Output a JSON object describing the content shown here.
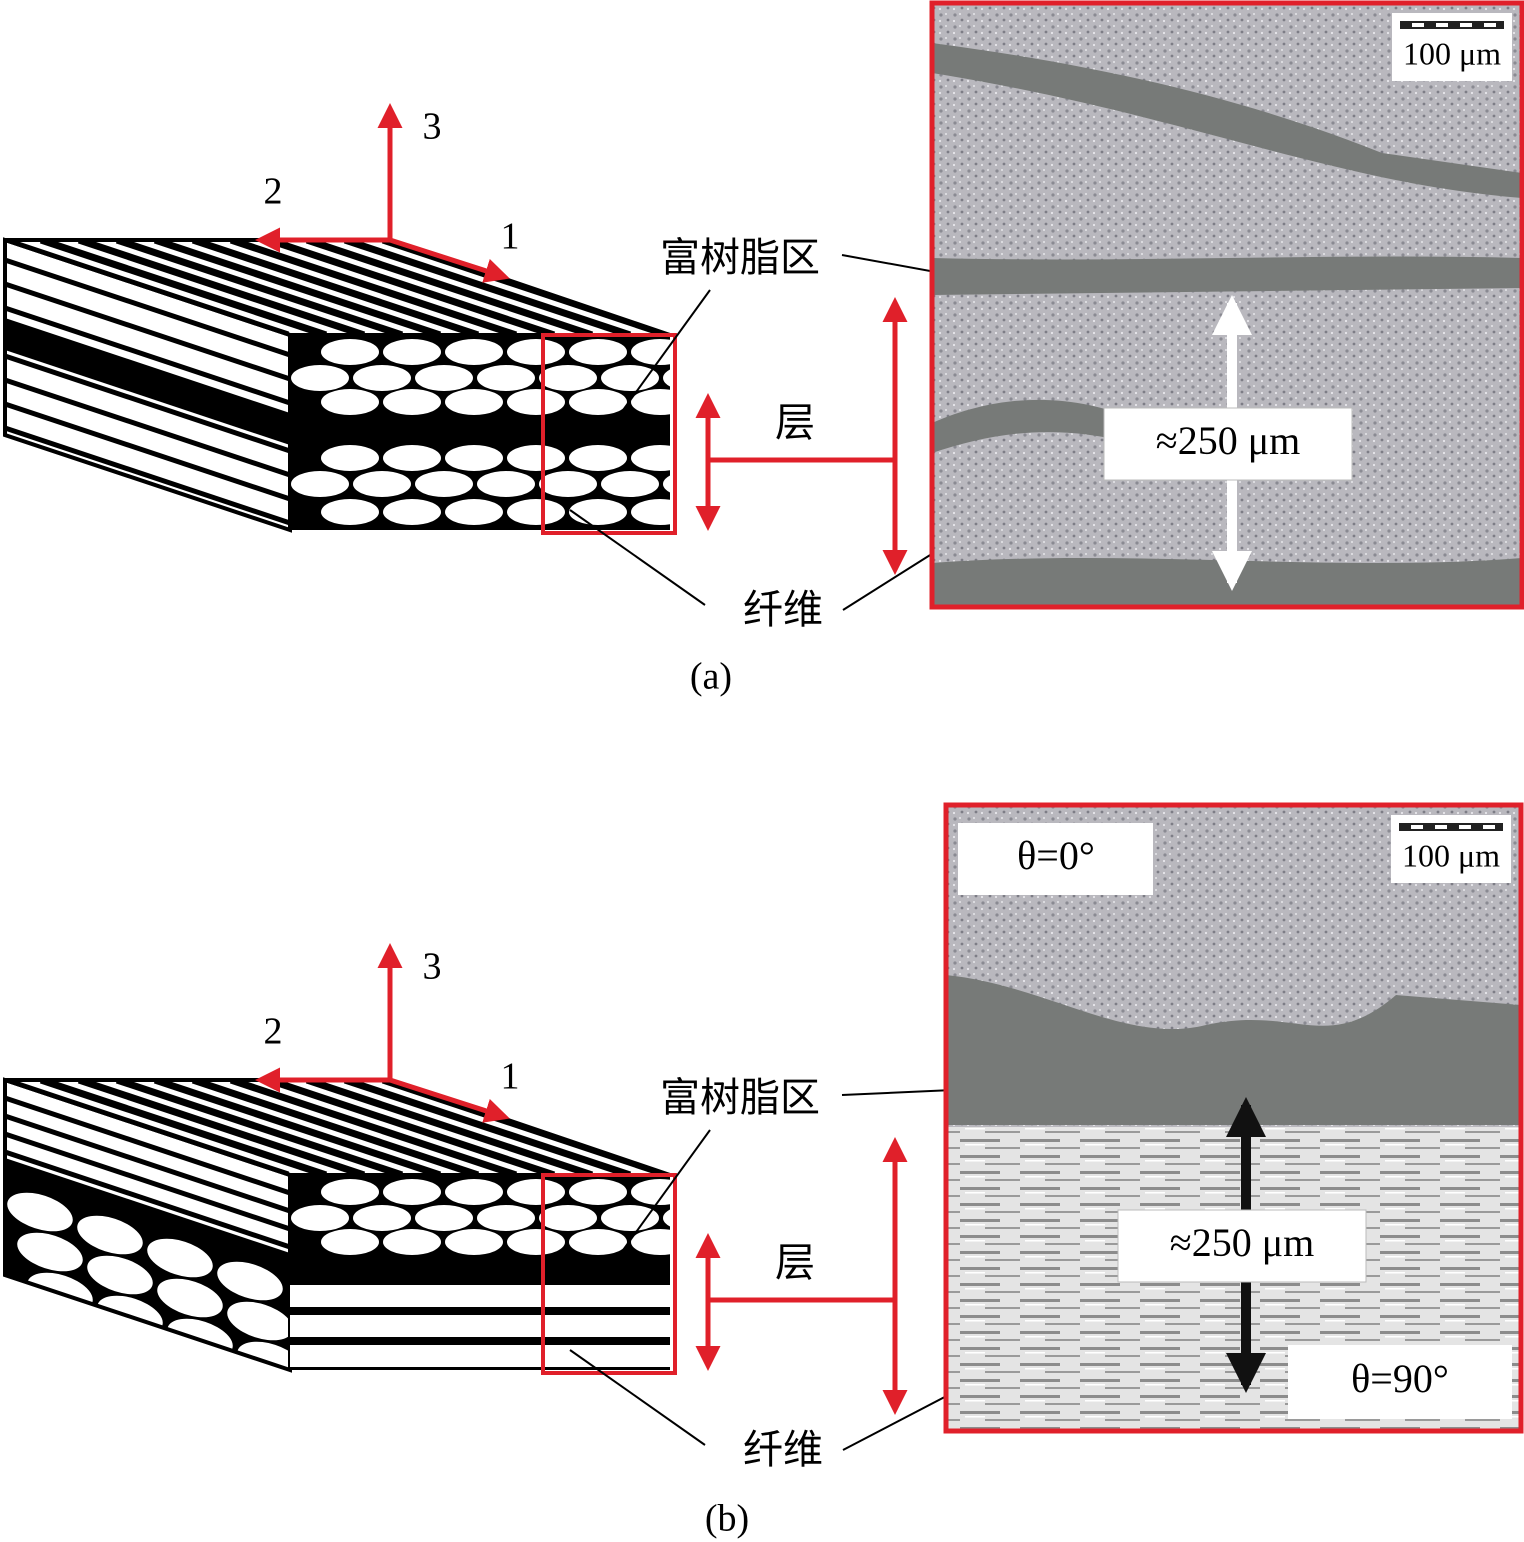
{
  "panels": [
    {
      "caption": "(a)",
      "axes": [
        "1",
        "2",
        "3"
      ],
      "resin_label": "富树脂区",
      "layer_label": "层",
      "fiber_label": "纤维",
      "scale_bar": "100 μm",
      "thickness": "≈250 μm"
    },
    {
      "caption": "(b)",
      "axes": [
        "1",
        "2",
        "3"
      ],
      "resin_label": "富树脂区",
      "layer_label": "层",
      "fiber_label": "纤维",
      "scale_bar": "100 μm",
      "thickness": "≈250 μm",
      "angle_top": "θ=0°",
      "angle_bottom": "θ=90°"
    }
  ]
}
